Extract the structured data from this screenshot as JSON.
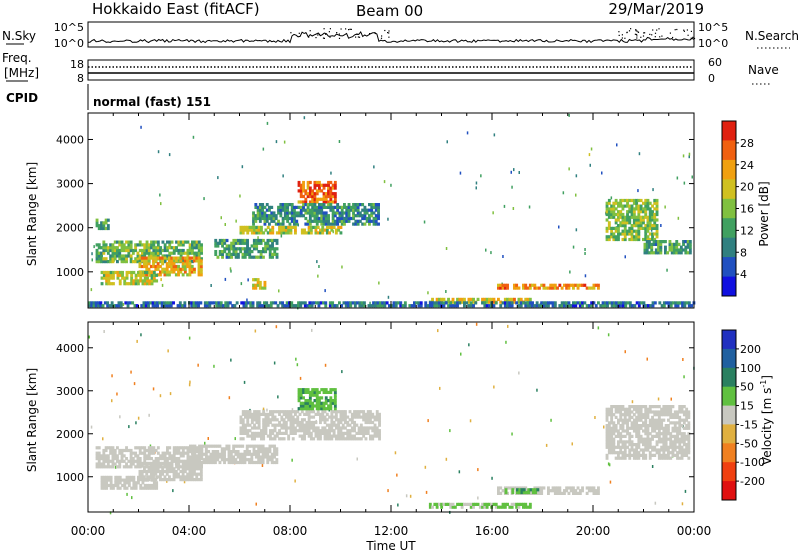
{
  "header": {
    "site": "Hokkaido East (fitACF)",
    "beam": "Beam 00",
    "date": "29/Mar/2019"
  },
  "top_panels": {
    "nsky_label": "N.Sky",
    "nsearch_label": "N.Search",
    "nsky_ticks": [
      "10^5",
      "10^0"
    ],
    "freq_label_line1": "Freq.",
    "freq_label_line2": "[MHz]",
    "freq_ticks": [
      "18",
      "8"
    ],
    "nave_label": "Nave",
    "nave_ticks": [
      "60",
      "0"
    ],
    "cpid_label": "CPID",
    "cpid_text": "normal (fast) 151"
  },
  "x_axis": {
    "label": "Time UT",
    "ticks": [
      "00:00",
      "04:00",
      "08:00",
      "12:00",
      "16:00",
      "20:00",
      "00:00"
    ]
  },
  "chart_data": [
    {
      "type": "heatmap",
      "quantity": "Power",
      "xlabel": "Time UT",
      "ylabel": "Slant Range [km]",
      "colorbar_label": "Power [dB]",
      "xlim": [
        0,
        24
      ],
      "ylim": [
        180,
        4600
      ],
      "yticks": [
        "1000",
        "2000",
        "3000",
        "4000"
      ],
      "colorbar_ticks": [
        "4",
        "8",
        "12",
        "16",
        "20",
        "24",
        "28"
      ],
      "colorbar_colors": [
        "#1010e0",
        "#2050c0",
        "#308080",
        "#40a060",
        "#80c040",
        "#d0c020",
        "#f0a010",
        "#f06010",
        "#e02010"
      ],
      "regions": [
        {
          "t": [
            0.3,
            4.5
          ],
          "r": [
            1200,
            1700
          ],
          "v": 14
        },
        {
          "t": [
            2.0,
            4.5
          ],
          "r": [
            900,
            1300
          ],
          "v": 22
        },
        {
          "t": [
            0.5,
            2.7
          ],
          "r": [
            700,
            1000
          ],
          "v": 18
        },
        {
          "t": [
            0.3,
            0.8
          ],
          "r": [
            1950,
            2150
          ],
          "v": 12
        },
        {
          "t": [
            5.0,
            7.5
          ],
          "r": [
            1300,
            1700
          ],
          "v": 12
        },
        {
          "t": [
            6.5,
            7.0
          ],
          "r": [
            600,
            800
          ],
          "v": 20
        },
        {
          "t": [
            6.0,
            10.0
          ],
          "r": [
            1850,
            2000
          ],
          "v": 18
        },
        {
          "t": [
            8.3,
            9.8
          ],
          "r": [
            2550,
            3050
          ],
          "v": 26
        },
        {
          "t": [
            6.5,
            11.5
          ],
          "r": [
            2050,
            2500
          ],
          "v": 10
        },
        {
          "t": [
            16.2,
            20.2
          ],
          "r": [
            600,
            700
          ],
          "v": 24
        },
        {
          "t": [
            13.5,
            17.5
          ],
          "r": [
            280,
            380
          ],
          "v": 20
        },
        {
          "t": [
            20.5,
            22.5
          ],
          "r": [
            1700,
            2600
          ],
          "v": 16
        },
        {
          "t": [
            22.0,
            23.8
          ],
          "r": [
            1400,
            1700
          ],
          "v": 12
        },
        {
          "t": [
            0.0,
            24.0
          ],
          "r": [
            200,
            320
          ],
          "v": 8
        }
      ]
    },
    {
      "type": "heatmap",
      "quantity": "Velocity",
      "xlabel": "Time UT",
      "ylabel": "Slant Range [km]",
      "colorbar_label": "Velocity [m s^-1]",
      "colorbar_label_main": "Velocity [m s",
      "colorbar_label_sup": "-1",
      "colorbar_label_end": "]",
      "xlim": [
        0,
        24
      ],
      "ylim": [
        180,
        4600
      ],
      "yticks": [
        "1000",
        "2000",
        "3000",
        "4000"
      ],
      "colorbar_ticks": [
        "200",
        "100",
        "50",
        "15",
        "-15",
        "-50",
        "-100",
        "-200"
      ],
      "colorbar_colors": [
        "#2030c0",
        "#2060a0",
        "#2a8060",
        "#60c040",
        "#c8c8c0",
        "#e0b040",
        "#f08020",
        "#f04010",
        "#e01010"
      ],
      "regions": [
        {
          "t": [
            0.3,
            4.5
          ],
          "r": [
            1200,
            1700
          ],
          "v": 0
        },
        {
          "t": [
            2.0,
            4.5
          ],
          "r": [
            900,
            1300
          ],
          "v": 0
        },
        {
          "t": [
            0.5,
            2.7
          ],
          "r": [
            700,
            1000
          ],
          "v": 0
        },
        {
          "t": [
            4.0,
            7.5
          ],
          "r": [
            1300,
            1700
          ],
          "v": 0
        },
        {
          "t": [
            6.0,
            11.5
          ],
          "r": [
            1850,
            2500
          ],
          "v": 0
        },
        {
          "t": [
            8.3,
            9.8
          ],
          "r": [
            2550,
            3050
          ],
          "v": 40
        },
        {
          "t": [
            16.2,
            20.2
          ],
          "r": [
            580,
            720
          ],
          "v": 0
        },
        {
          "t": [
            16.5,
            17.8
          ],
          "r": [
            600,
            720
          ],
          "v": 40
        },
        {
          "t": [
            13.5,
            17.5
          ],
          "r": [
            260,
            380
          ],
          "v": 20
        },
        {
          "t": [
            20.5,
            23.8
          ],
          "r": [
            1400,
            2600
          ],
          "v": 0
        }
      ]
    }
  ]
}
